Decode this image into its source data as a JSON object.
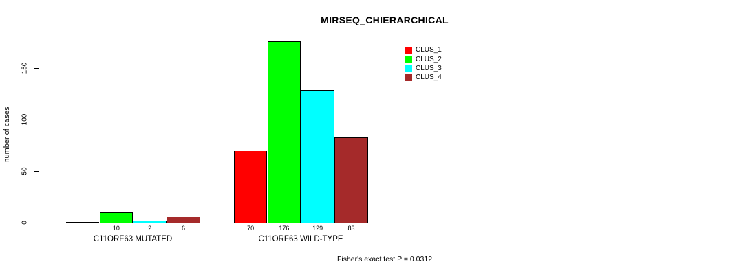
{
  "chart_data": {
    "type": "bar",
    "grouped": true,
    "title": "MIRSEQ_CHIERARCHICAL",
    "ylabel": "number of cases",
    "xlabel": "",
    "annotation": "Fisher's exact test P = 0.0312",
    "categories": [
      "C11ORF63 MUTATED",
      "C11ORF63 WILD-TYPE"
    ],
    "series": [
      {
        "name": "CLUS_1",
        "color": "#FF0000",
        "values": [
          0,
          70
        ]
      },
      {
        "name": "CLUS_2",
        "color": "#00FF00",
        "values": [
          10,
          176
        ]
      },
      {
        "name": "CLUS_3",
        "color": "#00FFFF",
        "values": [
          2,
          129
        ]
      },
      {
        "name": "CLUS_4",
        "color": "#A52A2A",
        "values": [
          6,
          83
        ]
      }
    ],
    "value_labels": [
      [
        "",
        "10",
        "2",
        "6"
      ],
      [
        "70",
        "176",
        "129",
        "83"
      ]
    ],
    "yticks": [
      0,
      50,
      100,
      150
    ],
    "ylim": [
      0,
      183
    ],
    "grid": false,
    "legend_position": "top-right",
    "legend_box": false,
    "bar_border_color": "#000000",
    "background_color": "#FFFFFF"
  }
}
